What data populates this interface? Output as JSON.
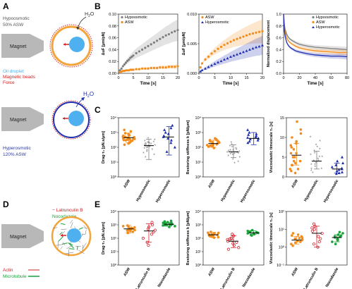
{
  "panel_labels": {
    "a": "A",
    "b": "B",
    "c": "C",
    "d": "D",
    "e": "E"
  },
  "colors": {
    "grey": "#7f7f7f",
    "orange": "#f28c1c",
    "blue": "#1f2fb0",
    "red": "#d4202a",
    "green": "#19a23a",
    "hypo_blue": "#2b3aa0",
    "oil_blue": "#4fb0f0",
    "bead_red": "#d42020",
    "droplet_orange": "#f3a43a"
  },
  "schematic_a": {
    "condition_top": "Hypoosmotic",
    "condition_top_2": "50% ASW",
    "water_label": "H",
    "water_sub": "2",
    "water_label_end": "O",
    "magnet": "Magnet",
    "legend_oil": "Oil droplet",
    "legend_beads": "Magnetic beads",
    "legend_force": "Force",
    "condition_bottom": "Hyperosmotic",
    "condition_bottom_2": "120% ASW"
  },
  "schematic_d": {
    "magnet": "Magnet",
    "drug1": "Latrunculin B",
    "drug2": "Nocodazole",
    "actin": "Actin",
    "microtubule": "Microtubule"
  },
  "chart_data": [
    {
      "id": "B1",
      "type": "scatter",
      "xlabel": "Time [s]",
      "ylabel": "ΔuF [μm/pN]",
      "xlim": [
        0,
        20
      ],
      "ylim": [
        0,
        0.1
      ],
      "xticks": [
        "0",
        "5",
        "10",
        "15",
        "20"
      ],
      "yticks": [
        "0.00",
        "0.02",
        "0.04",
        "0.06",
        "0.08",
        "0.10"
      ],
      "legend": "top-left",
      "series": [
        {
          "name": "Hypoosmotic",
          "color": "grey",
          "band": 0.015,
          "x": [
            0.5,
            1,
            1.5,
            2,
            2.5,
            3,
            3.5,
            4,
            4.5,
            5,
            6,
            7,
            8,
            9,
            10,
            11,
            12,
            13,
            14,
            15,
            16,
            17,
            18,
            19,
            20
          ],
          "y": [
            0.005,
            0.008,
            0.012,
            0.015,
            0.018,
            0.021,
            0.023,
            0.026,
            0.028,
            0.03,
            0.034,
            0.037,
            0.04,
            0.043,
            0.046,
            0.049,
            0.052,
            0.055,
            0.058,
            0.061,
            0.064,
            0.066,
            0.069,
            0.071,
            0.073
          ]
        },
        {
          "name": "ASW",
          "color": "orange",
          "band": 0.003,
          "x": [
            0.5,
            1,
            1.5,
            2,
            2.5,
            3,
            3.5,
            4,
            4.5,
            5,
            6,
            7,
            8,
            9,
            10,
            11,
            12,
            13,
            14,
            15,
            16,
            17,
            18,
            19,
            20
          ],
          "y": [
            0.002,
            0.003,
            0.004,
            0.004,
            0.005,
            0.005,
            0.005,
            0.006,
            0.006,
            0.006,
            0.007,
            0.007,
            0.008,
            0.008,
            0.008,
            0.009,
            0.009,
            0.009,
            0.01,
            0.01,
            0.01,
            0.011,
            0.011,
            0.011,
            0.012
          ]
        }
      ]
    },
    {
      "id": "B2",
      "type": "scatter",
      "xlabel": "Time [s]",
      "ylabel": "ΔuF [μm/pN]",
      "xlim": [
        0,
        20
      ],
      "ylim": [
        0,
        0.015
      ],
      "xticks": [
        "0",
        "5",
        "10",
        "15",
        "20"
      ],
      "yticks": [
        "0.000",
        "0.005",
        "0.010"
      ],
      "legend": "top-left",
      "series": [
        {
          "name": "ASW",
          "color": "orange",
          "band": 0.0025,
          "x": [
            0.5,
            1,
            2,
            3,
            4,
            5,
            6,
            7,
            8,
            9,
            10,
            11,
            12,
            13,
            14,
            15,
            16,
            17,
            18,
            19,
            20
          ],
          "y": [
            0.0015,
            0.0025,
            0.0035,
            0.0042,
            0.005,
            0.0056,
            0.0062,
            0.0067,
            0.0072,
            0.0076,
            0.008,
            0.0084,
            0.0087,
            0.009,
            0.0093,
            0.0096,
            0.0099,
            0.0101,
            0.0103,
            0.0105,
            0.0107
          ]
        },
        {
          "name": "Hyperosmotic",
          "color": "blue",
          "band": 0.002,
          "x": [
            0.5,
            1,
            2,
            3,
            4,
            5,
            6,
            7,
            8,
            9,
            10,
            11,
            12,
            13,
            14,
            15,
            16,
            17,
            18,
            19,
            20
          ],
          "y": [
            0.0005,
            0.0008,
            0.0012,
            0.0016,
            0.002,
            0.0024,
            0.0028,
            0.0031,
            0.0035,
            0.0038,
            0.0042,
            0.0045,
            0.0048,
            0.0051,
            0.0054,
            0.0057,
            0.006,
            0.0063,
            0.0066,
            0.0068,
            0.0071
          ]
        }
      ]
    },
    {
      "id": "B3",
      "type": "line",
      "xlabel": "Time [s]",
      "ylabel": "Normalized displacement",
      "xlim": [
        0,
        80
      ],
      "ylim": [
        0,
        1
      ],
      "xticks": [
        "0",
        "20",
        "40",
        "60",
        "80"
      ],
      "yticks": [
        "0.0",
        "0.2",
        "0.4",
        "0.6",
        "0.8",
        "1.0"
      ],
      "legend": "top-right",
      "series": [
        {
          "name": "Hypoosmotic",
          "color": "grey",
          "band": 0.04,
          "x": [
            0,
            1,
            2,
            4,
            6,
            8,
            10,
            15,
            20,
            30,
            40,
            50,
            60,
            70,
            80
          ],
          "y": [
            1.0,
            0.82,
            0.74,
            0.66,
            0.61,
            0.58,
            0.56,
            0.52,
            0.49,
            0.46,
            0.44,
            0.43,
            0.42,
            0.41,
            0.4
          ]
        },
        {
          "name": "ASW",
          "color": "orange",
          "band": 0.04,
          "x": [
            0,
            1,
            2,
            4,
            6,
            8,
            10,
            15,
            20,
            30,
            40,
            50,
            60,
            70,
            80
          ],
          "y": [
            1.0,
            0.78,
            0.69,
            0.6,
            0.55,
            0.52,
            0.5,
            0.46,
            0.43,
            0.4,
            0.38,
            0.37,
            0.36,
            0.35,
            0.35
          ]
        },
        {
          "name": "Hyperosmotic",
          "color": "blue",
          "band": 0.04,
          "x": [
            0,
            1,
            2,
            4,
            6,
            8,
            10,
            15,
            20,
            30,
            40,
            50,
            60,
            70,
            80
          ],
          "y": [
            1.0,
            0.72,
            0.62,
            0.52,
            0.47,
            0.44,
            0.42,
            0.38,
            0.36,
            0.33,
            0.31,
            0.3,
            0.29,
            0.29,
            0.28
          ]
        }
      ]
    },
    {
      "id": "C1",
      "type": "scatter",
      "scale": "log",
      "ylabel": "Drag·τ₁ [pN.s/μm]",
      "ylim": [
        1,
        10000
      ],
      "yticks": [
        "10⁰",
        "10¹",
        "10²",
        "10³",
        "10⁴"
      ],
      "categories": [
        "ASW",
        "Hypoosmotic",
        "Hyperosmotic"
      ],
      "groups": [
        {
          "color": "orange",
          "mean": 450,
          "err": [
            200,
            900
          ],
          "values": [
            800,
            650,
            550,
            500,
            450,
            420,
            400,
            380,
            350,
            330,
            300,
            280,
            250,
            600,
            700,
            900,
            1200,
            1500,
            200,
            180,
            150,
            520,
            480,
            370,
            310
          ]
        },
        {
          "color": "grey",
          "mean": 130,
          "err": [
            15,
            350
          ],
          "values": [
            400,
            300,
            250,
            200,
            180,
            160,
            150,
            140,
            130,
            120,
            110,
            100,
            90,
            80,
            70,
            60,
            50,
            40,
            30,
            20,
            220,
            190,
            170,
            115,
            95
          ]
        },
        {
          "color": "blue",
          "mean": 500,
          "err": [
            30,
            2500
          ],
          "values": [
            3000,
            2000,
            1500,
            1000,
            800,
            600,
            500,
            400,
            300,
            200,
            100,
            50
          ]
        }
      ]
    },
    {
      "id": "C2",
      "type": "scatter",
      "scale": "log",
      "ylabel": "Restoring stiffness k [pN/μm]",
      "ylim": [
        1,
        10000
      ],
      "yticks": [
        "10⁰",
        "10¹",
        "10²",
        "10³",
        "10⁴"
      ],
      "categories": [
        "ASW",
        "Hypoosmotic",
        "Hyperosmotic"
      ],
      "groups": [
        {
          "color": "orange",
          "mean": 180,
          "err": [
            100,
            300
          ],
          "values": [
            120,
            150,
            170,
            180,
            200,
            220,
            250,
            300,
            350,
            110,
            130,
            160,
            190,
            210,
            230,
            270,
            320,
            400,
            90,
            140
          ]
        },
        {
          "color": "grey",
          "mean": 50,
          "err": [
            20,
            150
          ],
          "values": [
            200,
            150,
            120,
            100,
            80,
            70,
            60,
            50,
            45,
            40,
            35,
            30,
            25,
            20,
            15,
            10,
            8,
            60,
            55,
            42,
            38,
            33
          ]
        },
        {
          "color": "blue",
          "mean": 400,
          "err": [
            150,
            1000
          ],
          "values": [
            1500,
            1000,
            800,
            600,
            500,
            400,
            350,
            300,
            250,
            200,
            700,
            450
          ]
        }
      ]
    },
    {
      "id": "C3",
      "type": "scatter",
      "ylabel": "Viscoelastic timescale τ₁ [s]",
      "ylim": [
        0,
        15
      ],
      "yticks": [
        "0",
        "5",
        "10",
        "15"
      ],
      "categories": [
        "ASW",
        "Hypoosmotic",
        "Hyperosmotic"
      ],
      "groups": [
        {
          "color": "orange",
          "mean": 5.5,
          "err": [
            3.0,
            8.5
          ],
          "values": [
            14,
            12,
            11,
            10,
            9,
            8,
            7,
            6,
            6,
            5,
            5,
            4,
            4,
            3,
            3,
            2,
            2,
            1.5,
            1,
            7.5,
            8.5,
            3.5
          ]
        },
        {
          "color": "grey",
          "mean": 4.0,
          "err": [
            2.0,
            6.5
          ],
          "values": [
            10,
            9,
            8,
            7,
            6,
            5,
            5,
            4,
            4,
            3,
            3,
            2,
            2,
            1.5,
            1,
            6.5,
            5.5,
            4.5,
            3.5,
            2.5,
            7.5
          ]
        },
        {
          "color": "blue",
          "mean": 2.0,
          "err": [
            1.0,
            3.5
          ],
          "values": [
            5,
            4,
            3,
            2.5,
            2,
            1.8,
            1.5,
            1.2,
            1,
            0.8,
            3.5,
            2.2
          ]
        }
      ]
    },
    {
      "id": "E1",
      "type": "scatter",
      "scale": "log",
      "ylabel": "Drag·τ₁ [pN.s/μm]",
      "ylim": [
        1,
        10000
      ],
      "yticks": [
        "10⁰",
        "10¹",
        "10²",
        "10³",
        "10⁴"
      ],
      "categories": [
        "ASW",
        "Latrunculin B",
        "Nocodazole"
      ],
      "groups": [
        {
          "color": "orange",
          "mean": 500,
          "err": [
            250,
            900
          ],
          "values": [
            900,
            700,
            600,
            550,
            500,
            450,
            400,
            350,
            300,
            250,
            800,
            650,
            520,
            420,
            380
          ]
        },
        {
          "color": "red",
          "mean": 350,
          "err": [
            50,
            1200
          ],
          "values": [
            1500,
            1000,
            700,
            500,
            300,
            200,
            100,
            50,
            30,
            400
          ]
        },
        {
          "color": "green",
          "mean": 1100,
          "err": [
            800,
            1500
          ],
          "values": [
            2000,
            1800,
            1500,
            1300,
            1200,
            1100,
            1000,
            900,
            800,
            700,
            1400,
            1600,
            950,
            1050,
            1250,
            1150
          ]
        }
      ]
    },
    {
      "id": "E2",
      "type": "scatter",
      "scale": "log",
      "ylabel": "Restoring stiffness k [pN/μm]",
      "ylim": [
        1,
        10000
      ],
      "yticks": [
        "10⁰",
        "10¹",
        "10²",
        "10³",
        "10⁴"
      ],
      "categories": [
        "ASW",
        "Latrunculin B",
        "Nocodazole"
      ],
      "groups": [
        {
          "color": "orange",
          "mean": 180,
          "err": [
            120,
            280
          ],
          "values": [
            300,
            250,
            220,
            200,
            180,
            160,
            150,
            130,
            120,
            110,
            260,
            190,
            170,
            140
          ]
        },
        {
          "color": "red",
          "mean": 60,
          "err": [
            20,
            150
          ],
          "values": [
            200,
            150,
            100,
            80,
            60,
            50,
            40,
            30,
            20,
            15,
            70,
            90
          ]
        },
        {
          "color": "green",
          "mean": 250,
          "err": [
            200,
            350
          ],
          "values": [
            400,
            350,
            300,
            280,
            250,
            230,
            200,
            180,
            160,
            320,
            270,
            240
          ]
        }
      ]
    },
    {
      "id": "E3",
      "type": "scatter",
      "scale": "log",
      "ylabel": "Viscoelastic timescale τ₁ [s]",
      "ylim": [
        0.1,
        100
      ],
      "yticks": [
        "10⁻¹",
        "10⁰",
        "10¹",
        "10²"
      ],
      "categories": [
        "ASW",
        "Latrunculin B",
        "Nocodazole"
      ],
      "groups": [
        {
          "color": "orange",
          "mean": 2.5,
          "err": [
            1.5,
            4.0
          ],
          "values": [
            6,
            5,
            4,
            3.5,
            3,
            2.5,
            2,
            1.8,
            1.5,
            1.2,
            4.5,
            3.2,
            2.2,
            2.8
          ]
        },
        {
          "color": "red",
          "mean": 6.0,
          "err": [
            1.0,
            15
          ],
          "values": [
            20,
            15,
            10,
            8,
            6,
            4,
            3,
            2,
            1.5,
            1,
            12
          ]
        },
        {
          "color": "green",
          "mean": 3.5,
          "err": [
            2.0,
            5.0
          ],
          "values": [
            7,
            6,
            5,
            4,
            3.5,
            3,
            2.5,
            2,
            1.5,
            4.5,
            3.8,
            2.8
          ]
        }
      ]
    }
  ]
}
